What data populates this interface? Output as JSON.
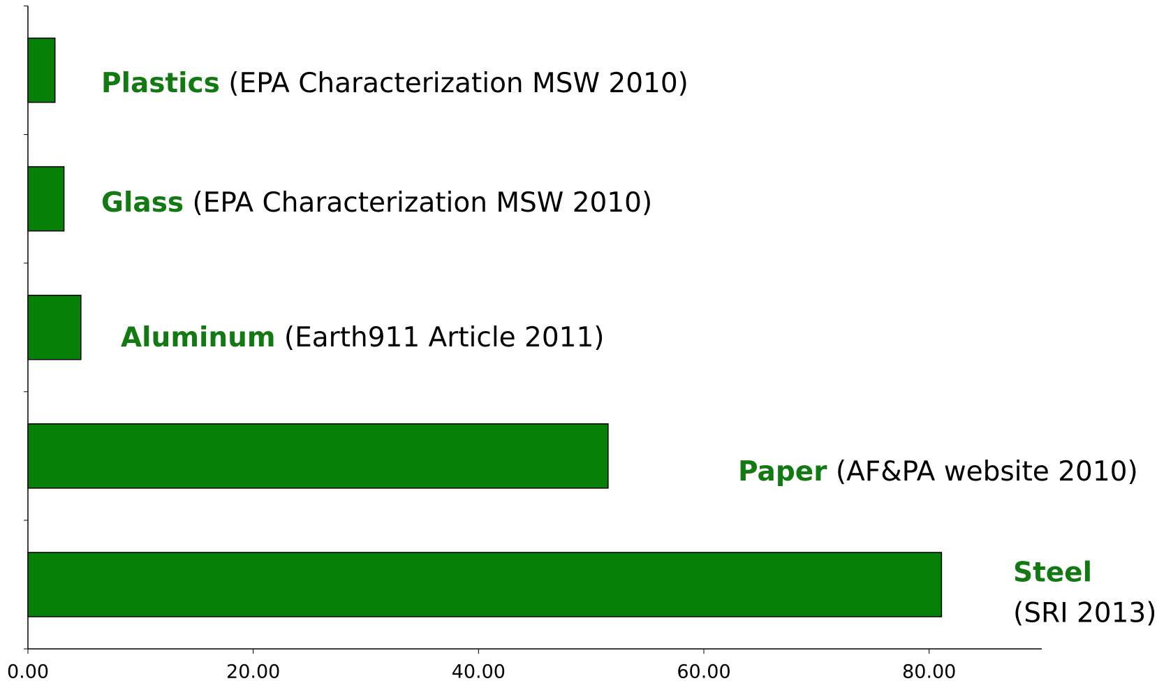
{
  "chart_data": {
    "type": "barh",
    "categories": [
      "Plastics",
      "Glass",
      "Aluminum",
      "Paper",
      "Steel"
    ],
    "sources": [
      "(EPA Characterization MSW 2010)",
      "(EPA Characterization MSW 2010)",
      "(Earth911 Article 2011)",
      "(AF&PA website 2010)",
      "(SRI 2013)"
    ],
    "values": [
      2.4,
      3.2,
      4.7,
      51.5,
      81.1
    ],
    "color": "#068006",
    "xlim": [
      0,
      90
    ],
    "xticks": [
      {
        "value": 0,
        "label": "0.00"
      },
      {
        "value": 20,
        "label": "20.00"
      },
      {
        "value": 40,
        "label": "40.00"
      },
      {
        "value": 60,
        "label": "60.00"
      },
      {
        "value": 80,
        "label": "80.00"
      }
    ]
  }
}
